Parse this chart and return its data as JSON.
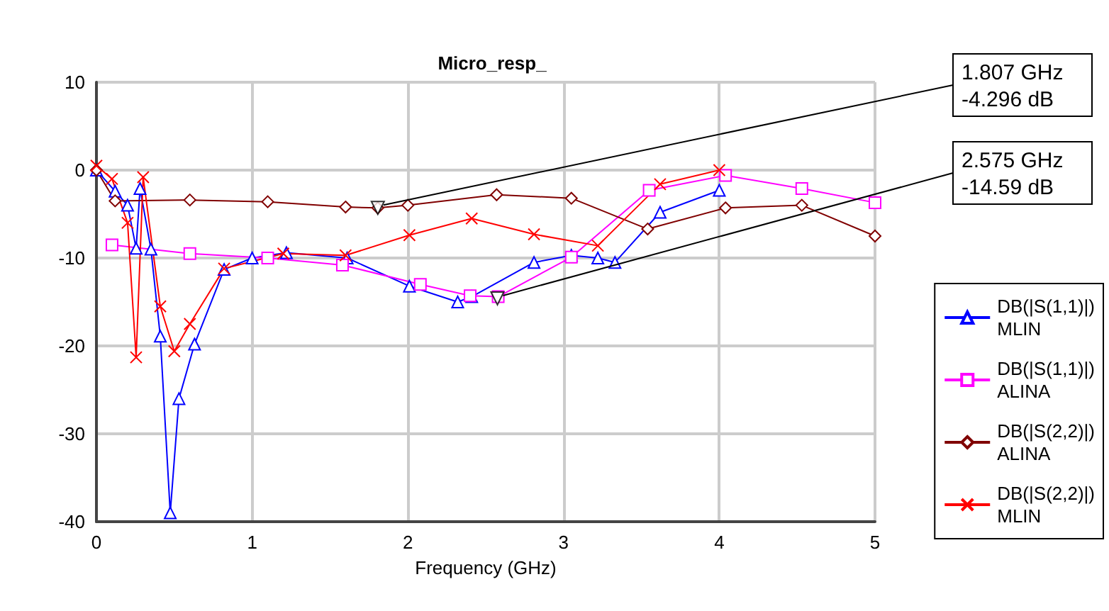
{
  "chart_data": {
    "type": "line",
    "title": "Micro_resp_",
    "xlabel": "Frequency (GHz)",
    "xlim": [
      0,
      5
    ],
    "xticks": [
      0,
      1,
      2,
      3,
      4,
      5
    ],
    "ylim": [
      -40,
      10
    ],
    "yticks": [
      -40,
      -30,
      -20,
      -10,
      0,
      10
    ],
    "grid": true,
    "legend": "right",
    "line_style": "solid",
    "annotations": [
      {
        "text": "1.807 GHz\n-4.296 dB",
        "x": 1.807,
        "y": -4.296
      },
      {
        "text": "2.575 GHz\n-14.59 dB",
        "x": 2.575,
        "y": -14.59
      }
    ],
    "series": [
      {
        "name": "DB(|S(1,1)|)\nMLIN",
        "color": "#0000ff",
        "marker": "triangle",
        "x": [
          0,
          0.12,
          0.2,
          0.255,
          0.28,
          0.35,
          0.41,
          0.474,
          0.53,
          0.63,
          0.82,
          1.0,
          1.22,
          1.61,
          2.01,
          2.32,
          2.41,
          2.81,
          3.05,
          3.22,
          3.33,
          3.62,
          4.0
        ],
        "values": [
          0,
          -2.4,
          -4,
          -8.9,
          -2.1,
          -9,
          -18.9,
          -39,
          -26,
          -19.8,
          -11.3,
          -10,
          -9.4,
          -10,
          -13.2,
          -15,
          -14.4,
          -10.5,
          -9.7,
          -10,
          -10.5,
          -4.8,
          -2.3
        ]
      },
      {
        "name": "DB(|S(1,1)|)\nALINA",
        "color": "#ff00ff",
        "marker": "square",
        "x": [
          0.1,
          0.6,
          1.1,
          1.58,
          2.08,
          2.4,
          2.58,
          3.05,
          3.55,
          4.04,
          4.53,
          5.0
        ],
        "values": [
          -8.5,
          -9.5,
          -10,
          -10.8,
          -13,
          -14.3,
          -14.4,
          -9.9,
          -2.3,
          -0.6,
          -2.1,
          -3.7
        ]
      },
      {
        "name": "DB(|S(2,2)|)\nALINA",
        "color": "#800000",
        "marker": "diamond",
        "x": [
          0,
          0.12,
          0.6,
          1.1,
          1.6,
          1.807,
          2.0,
          2.57,
          3.05,
          3.54,
          4.04,
          4.53,
          5.0
        ],
        "values": [
          0,
          -3.5,
          -3.4,
          -3.6,
          -4.2,
          -4.3,
          -4.0,
          -2.8,
          -3.2,
          -6.7,
          -4.3,
          -4.0,
          -7.5
        ]
      },
      {
        "name": "DB(|S(2,2)|)\nMLIN",
        "color": "#ff0000",
        "marker": "cross",
        "x": [
          0,
          0.1,
          0.2,
          0.255,
          0.3,
          0.41,
          0.5,
          0.6,
          0.82,
          1.2,
          1.6,
          2.01,
          2.41,
          2.81,
          3.22,
          3.62,
          4.0
        ],
        "values": [
          0.5,
          -1,
          -6,
          -21.3,
          -0.8,
          -15.5,
          -20.6,
          -17.5,
          -11.2,
          -9.5,
          -9.7,
          -7.4,
          -5.5,
          -7.3,
          -8.6,
          -1.6,
          0
        ]
      }
    ]
  }
}
